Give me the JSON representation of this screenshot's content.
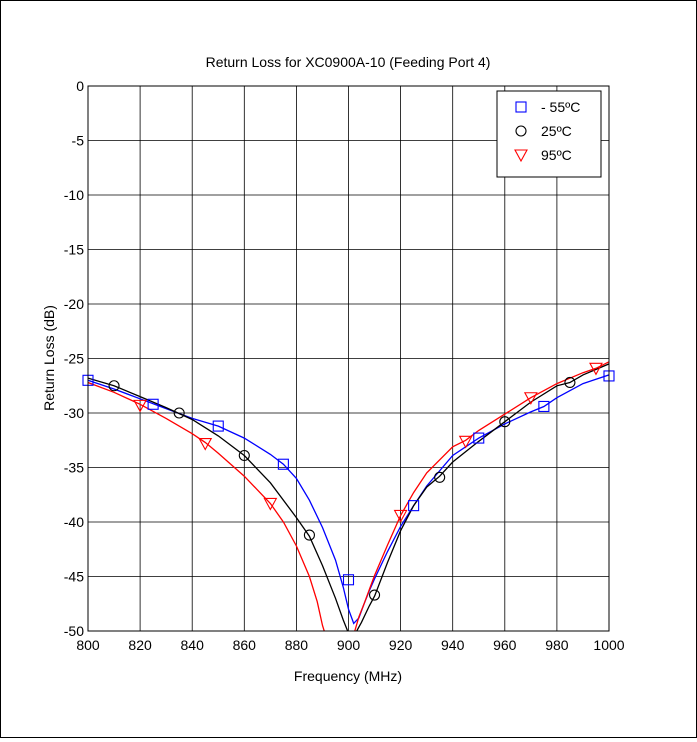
{
  "chart_data": {
    "type": "line",
    "title": "Return Loss for XC0900A-10 (Feeding Port 4)",
    "xlabel": "Frequency (MHz)",
    "ylabel": "Return Loss (dB)",
    "xlim": [
      800,
      1000
    ],
    "ylim": [
      -50,
      0
    ],
    "xticks": [
      800,
      820,
      840,
      860,
      880,
      900,
      920,
      940,
      960,
      980,
      1000
    ],
    "yticks": [
      0,
      -5,
      -10,
      -15,
      -20,
      -25,
      -30,
      -35,
      -40,
      -45,
      -50
    ],
    "grid": true,
    "legend_position": "top-right",
    "series": [
      {
        "name": "- 55ºC",
        "color": "#0000ff",
        "marker": "square",
        "x": [
          800,
          810,
          820,
          830,
          840,
          850,
          860,
          870,
          875,
          880,
          885,
          890,
          895,
          898,
          900,
          902,
          904,
          906,
          908,
          910,
          915,
          920,
          925,
          930,
          940,
          950,
          960,
          970,
          975,
          980,
          990,
          1000
        ],
        "y": [
          -27.0,
          -27.8,
          -28.7,
          -29.6,
          -30.5,
          -31.2,
          -32.3,
          -33.8,
          -34.7,
          -36.0,
          -38.0,
          -40.5,
          -43.5,
          -46.0,
          -48.0,
          -49.3,
          -48.8,
          -47.5,
          -46.3,
          -45.2,
          -42.7,
          -40.4,
          -38.5,
          -36.7,
          -33.9,
          -32.3,
          -31.0,
          -29.9,
          -29.4,
          -28.6,
          -27.3,
          -26.5
        ],
        "markers_x": [
          800,
          825,
          850,
          875,
          900,
          925,
          950,
          975,
          1000
        ],
        "markers_y": [
          -27.0,
          -29.2,
          -31.2,
          -34.7,
          -45.3,
          -38.5,
          -32.3,
          -29.4,
          -26.6
        ]
      },
      {
        "name": "25ºC",
        "color": "#000000",
        "marker": "circle",
        "x": [
          800,
          810,
          820,
          830,
          840,
          850,
          860,
          870,
          880,
          885,
          890,
          895,
          898,
          900,
          902,
          905,
          908,
          910,
          915,
          920,
          925,
          930,
          935,
          940,
          950,
          960,
          970,
          980,
          985,
          990,
          1000
        ],
        "y": [
          -26.8,
          -27.5,
          -28.5,
          -29.5,
          -30.6,
          -32.1,
          -33.9,
          -36.4,
          -39.6,
          -41.3,
          -44.0,
          -47.0,
          -49.0,
          -50.2,
          -50.5,
          -49.2,
          -47.7,
          -46.8,
          -43.7,
          -40.8,
          -38.5,
          -36.8,
          -35.8,
          -34.5,
          -32.6,
          -30.8,
          -29.0,
          -27.5,
          -27.2,
          -26.5,
          -25.5
        ],
        "markers_x": [
          810,
          835,
          860,
          885,
          910,
          935,
          960,
          985
        ],
        "markers_y": [
          -27.5,
          -30.0,
          -33.9,
          -41.2,
          -46.7,
          -35.9,
          -30.8,
          -27.2
        ]
      },
      {
        "name": "95ºC",
        "color": "#ff0000",
        "marker": "triangle-down",
        "x": [
          800,
          810,
          820,
          830,
          840,
          845,
          850,
          860,
          870,
          875,
          880,
          885,
          888,
          890,
          892,
          895,
          900,
          904,
          906,
          908,
          910,
          915,
          920,
          925,
          930,
          940,
          945,
          950,
          960,
          970,
          980,
          990,
          995,
          1000
        ],
        "y": [
          -27.2,
          -28.1,
          -29.2,
          -30.5,
          -31.9,
          -32.7,
          -33.7,
          -35.8,
          -38.3,
          -40.0,
          -42.2,
          -45.0,
          -47.3,
          -49.5,
          -51.0,
          -52.5,
          -52.0,
          -48.7,
          -47.5,
          -46.2,
          -44.9,
          -42.1,
          -39.4,
          -37.3,
          -35.5,
          -33.1,
          -32.5,
          -31.6,
          -30.1,
          -28.6,
          -27.3,
          -26.3,
          -25.9,
          -25.3
        ],
        "markers_x": [
          820,
          845,
          870,
          920,
          945,
          970,
          995
        ],
        "markers_y": [
          -29.3,
          -32.8,
          -38.3,
          -39.4,
          -32.6,
          -28.6,
          -25.9
        ]
      }
    ]
  }
}
